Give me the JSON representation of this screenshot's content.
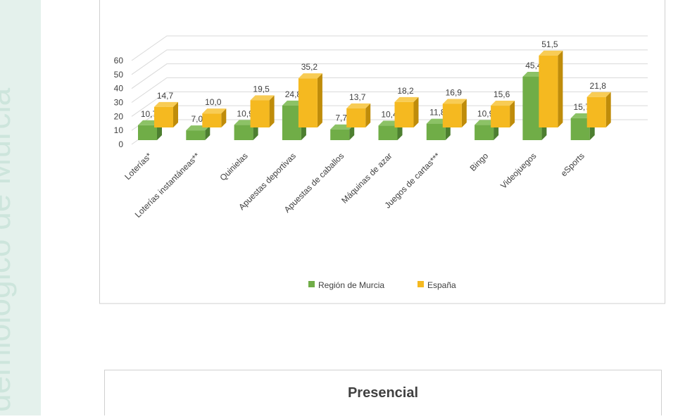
{
  "document": {
    "sidebar_text": "demiológico de Murcia",
    "next_chart_title": "Presencial"
  },
  "chart_data": {
    "type": "bar3d",
    "categories": [
      "Loterías*",
      "Loterías instantáneas**",
      "Quinielas",
      "Apuestas deportivas",
      "Apuestas de caballos",
      "Máquinas de azar",
      "Juegos de cartas***",
      "Bingo",
      "Videojuegos",
      "eSports"
    ],
    "series": [
      {
        "name": "Región de Murcia",
        "color": "#70ad47",
        "side": "#4d7f30",
        "top": "#8cc266",
        "values": [
          10.7,
          7.0,
          10.9,
          24.8,
          7.7,
          10.4,
          11.8,
          10.9,
          45.4,
          15.7
        ],
        "value_labels": [
          "10,7",
          "7,0",
          "10,9",
          "24,8",
          "7,7",
          "10,4",
          "11,8",
          "10,9",
          "45,4",
          "15,7"
        ]
      },
      {
        "name": "España",
        "color": "#f5b920",
        "side": "#bf8c0a",
        "top": "#f8cc55",
        "values": [
          14.7,
          10.0,
          19.5,
          35.2,
          13.7,
          18.2,
          16.9,
          15.6,
          51.5,
          21.8
        ],
        "value_labels": [
          "14,7",
          "10,0",
          "19,5",
          "35,2",
          "13,7",
          "18,2",
          "16,9",
          "15,6",
          "51,5",
          "21,8"
        ]
      }
    ],
    "ylim": [
      0,
      60
    ],
    "yticks": [
      0,
      10,
      20,
      30,
      40,
      50,
      60
    ],
    "grid": true,
    "legend": "bottom"
  }
}
